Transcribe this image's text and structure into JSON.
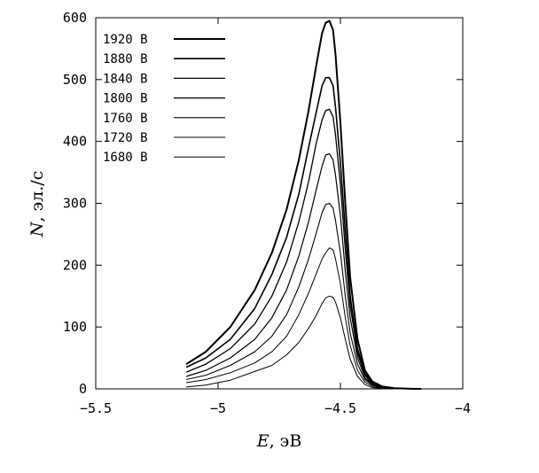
{
  "chart_data": {
    "type": "line",
    "xlabel_symbol": "E",
    "xlabel_unit": ", эВ",
    "ylabel_symbol": "N",
    "ylabel_unit": ", эл./с",
    "xlim": [
      -5.5,
      -4
    ],
    "ylim": [
      0,
      600
    ],
    "x_ticks": [
      -5.5,
      -5,
      -4.5,
      -4
    ],
    "x_tick_labels": [
      "−5.5",
      "−5",
      "−4.5",
      "−4"
    ],
    "y_ticks": [
      0,
      100,
      200,
      300,
      400,
      500,
      600
    ],
    "y_tick_labels": [
      "0",
      "100",
      "200",
      "300",
      "400",
      "500",
      "600"
    ],
    "grid": false,
    "legend_position": "top-left",
    "series": [
      {
        "name": "1920 В",
        "stroke": 2.0,
        "x": [
          -5.13,
          -5.05,
          -4.95,
          -4.85,
          -4.78,
          -4.72,
          -4.67,
          -4.63,
          -4.6,
          -4.575,
          -4.56,
          -4.545,
          -4.53,
          -4.52,
          -4.5,
          -4.48,
          -4.46,
          -4.43,
          -4.4,
          -4.37,
          -4.33,
          -4.28,
          -4.2,
          -4.17
        ],
        "y": [
          40,
          60,
          100,
          160,
          220,
          290,
          370,
          450,
          520,
          575,
          592,
          595,
          580,
          540,
          430,
          300,
          180,
          80,
          30,
          12,
          4,
          1,
          0,
          0
        ]
      },
      {
        "name": "1880 В",
        "stroke": 1.6,
        "x": [
          -5.13,
          -5.05,
          -4.95,
          -4.85,
          -4.78,
          -4.72,
          -4.67,
          -4.63,
          -4.6,
          -4.575,
          -4.56,
          -4.545,
          -4.53,
          -4.52,
          -4.5,
          -4.48,
          -4.46,
          -4.43,
          -4.4,
          -4.37,
          -4.33,
          -4.28,
          -4.2,
          -4.17
        ],
        "y": [
          35,
          50,
          80,
          130,
          185,
          245,
          315,
          390,
          445,
          490,
          503,
          503,
          490,
          455,
          365,
          255,
          150,
          65,
          25,
          10,
          3,
          1,
          0,
          0
        ]
      },
      {
        "name": "1840 В",
        "stroke": 1.3,
        "x": [
          -5.13,
          -5.05,
          -4.95,
          -4.85,
          -4.78,
          -4.72,
          -4.67,
          -4.63,
          -4.6,
          -4.575,
          -4.56,
          -4.545,
          -4.53,
          -4.52,
          -4.5,
          -4.48,
          -4.46,
          -4.43,
          -4.4,
          -4.37,
          -4.33,
          -4.28,
          -4.2,
          -4.17
        ],
        "y": [
          27,
          40,
          65,
          105,
          150,
          205,
          270,
          335,
          395,
          435,
          450,
          452,
          440,
          410,
          330,
          225,
          135,
          58,
          22,
          8,
          3,
          1,
          0,
          0
        ]
      },
      {
        "name": "1800 В",
        "stroke": 1.2,
        "x": [
          -5.13,
          -5.05,
          -4.95,
          -4.85,
          -4.78,
          -4.72,
          -4.67,
          -4.63,
          -4.6,
          -4.575,
          -4.56,
          -4.545,
          -4.53,
          -4.52,
          -4.5,
          -4.48,
          -4.46,
          -4.43,
          -4.4,
          -4.37,
          -4.33,
          -4.28,
          -4.2,
          -4.17
        ],
        "y": [
          20,
          30,
          50,
          80,
          115,
          160,
          215,
          270,
          320,
          360,
          378,
          380,
          370,
          345,
          280,
          190,
          115,
          50,
          18,
          7,
          2,
          1,
          0,
          0
        ]
      },
      {
        "name": "1760 В",
        "stroke": 1.1,
        "x": [
          -5.13,
          -5.05,
          -4.95,
          -4.85,
          -4.78,
          -4.72,
          -4.67,
          -4.63,
          -4.6,
          -4.575,
          -4.56,
          -4.545,
          -4.53,
          -4.52,
          -4.5,
          -4.48,
          -4.46,
          -4.43,
          -4.4,
          -4.37,
          -4.33,
          -4.28,
          -4.2,
          -4.17
        ],
        "y": [
          15,
          22,
          38,
          60,
          85,
          120,
          165,
          210,
          250,
          285,
          298,
          300,
          292,
          272,
          220,
          150,
          90,
          40,
          15,
          6,
          2,
          1,
          0,
          0
        ]
      },
      {
        "name": "1720 В",
        "stroke": 1.0,
        "x": [
          -5.13,
          -5.05,
          -4.95,
          -4.85,
          -4.78,
          -4.72,
          -4.67,
          -4.63,
          -4.6,
          -4.575,
          -4.56,
          -4.545,
          -4.53,
          -4.52,
          -4.5,
          -4.48,
          -4.46,
          -4.43,
          -4.4,
          -4.37,
          -4.33,
          -4.28,
          -4.2,
          -4.17
        ],
        "y": [
          10,
          15,
          26,
          42,
          60,
          85,
          120,
          155,
          185,
          210,
          220,
          228,
          225,
          210,
          170,
          115,
          70,
          30,
          11,
          4,
          1,
          0,
          0,
          0
        ]
      },
      {
        "name": "1680 В",
        "stroke": 1.0,
        "x": [
          -5.13,
          -5.05,
          -4.95,
          -4.85,
          -4.78,
          -4.72,
          -4.67,
          -4.63,
          -4.6,
          -4.575,
          -4.56,
          -4.545,
          -4.53,
          -4.52,
          -4.5,
          -4.48,
          -4.46,
          -4.43,
          -4.4,
          -4.37,
          -4.33,
          -4.28,
          -4.2,
          -4.17
        ],
        "y": [
          3,
          6,
          14,
          28,
          38,
          55,
          75,
          98,
          118,
          138,
          147,
          150,
          148,
          140,
          115,
          80,
          48,
          20,
          7,
          2,
          1,
          0,
          0,
          0
        ]
      }
    ]
  }
}
